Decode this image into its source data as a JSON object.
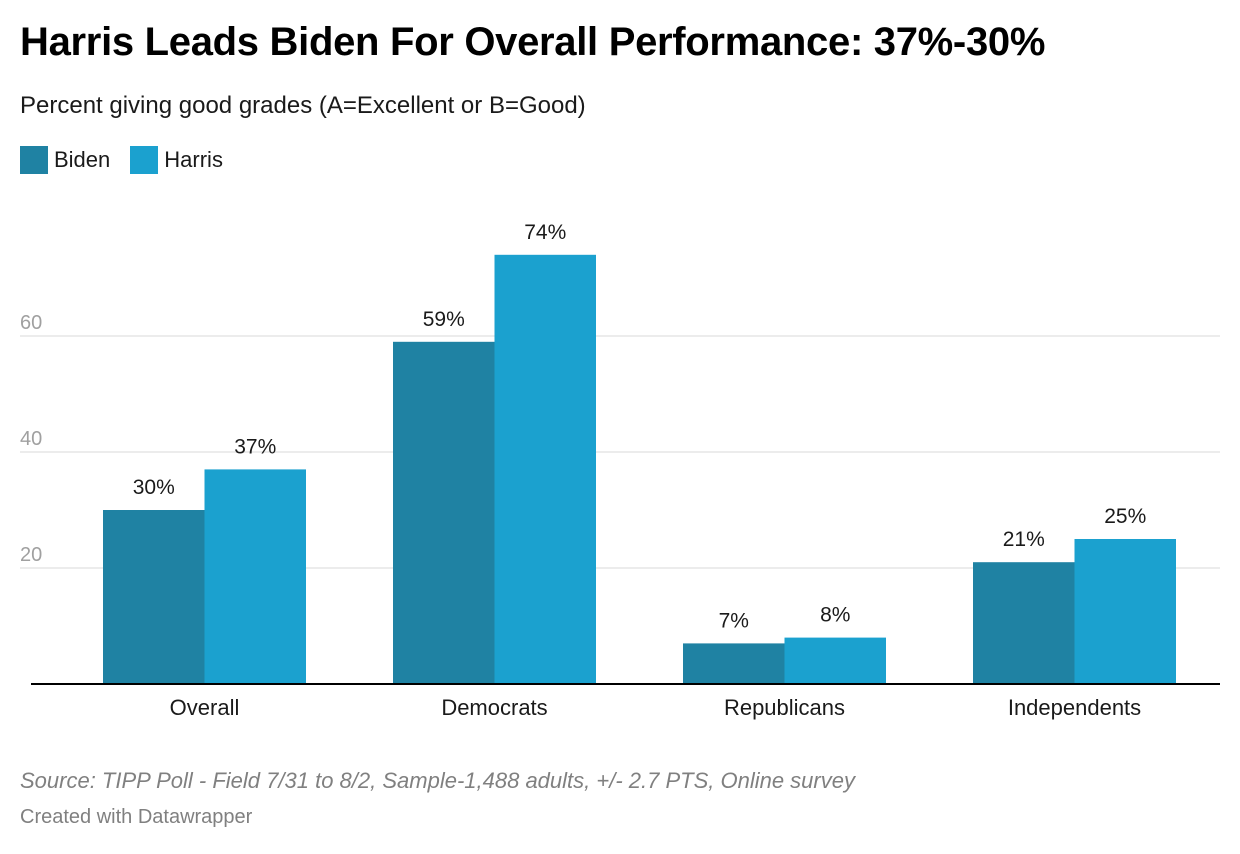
{
  "chart_data": {
    "type": "bar",
    "title": "Harris Leads Biden For Overall Performance: 37%-30%",
    "subtitle": "Percent giving good grades (A=Excellent or B=Good)",
    "categories": [
      "Overall",
      "Democrats",
      "Republicans",
      "Independents"
    ],
    "series": [
      {
        "name": "Biden",
        "values": [
          30,
          59,
          7,
          21
        ],
        "color": "#1f82a3"
      },
      {
        "name": "Harris",
        "values": [
          37,
          74,
          8,
          25
        ],
        "color": "#1ba1cf"
      }
    ],
    "value_labels": [
      [
        "30%",
        "59%",
        "7%",
        "21%"
      ],
      [
        "37%",
        "74%",
        "8%",
        "25%"
      ]
    ],
    "y_ticks": [
      "20",
      "40",
      "60"
    ],
    "y_tick_values": [
      20,
      40,
      60
    ],
    "ylim": [
      0,
      80
    ],
    "grid": true,
    "legend_position": "top-left",
    "xlabel": "",
    "ylabel": ""
  },
  "footer": {
    "source": "Source: TIPP Poll - Field 7/31 to 8/2, Sample-1,488 adults, +/- 2.7 PTS, Online survey",
    "credit": "Created with Datawrapper"
  },
  "colors": {
    "gridline": "#e6e6e6",
    "axis": "#000000",
    "tick_label": "#a0a0a0"
  }
}
